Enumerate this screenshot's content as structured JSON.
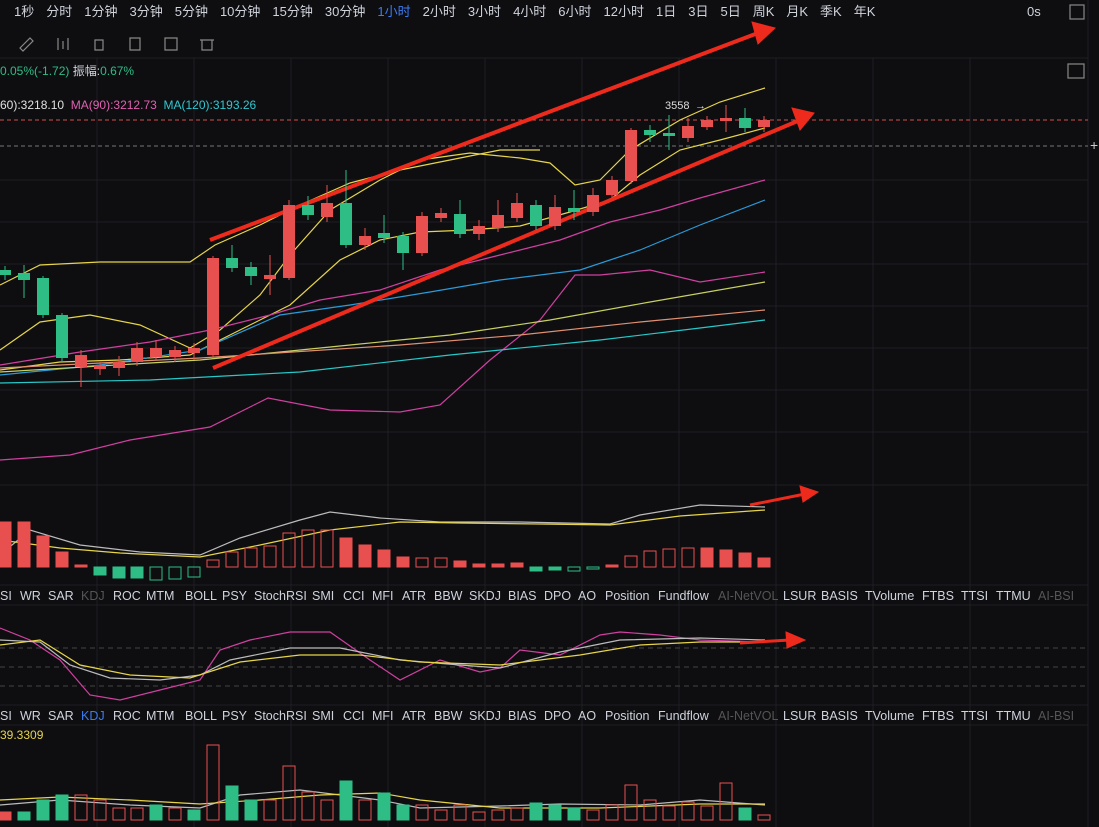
{
  "toolbar": {
    "intervals": [
      "1秒",
      "分时",
      "1分钟",
      "3分钟",
      "5分钟",
      "10分钟",
      "15分钟",
      "30分钟",
      "1小时",
      "2小时",
      "3小时",
      "4小时",
      "6小时",
      "12小时",
      "1日",
      "3日",
      "5日",
      "周K",
      "月K",
      "季K",
      "年K"
    ],
    "timer": "0s"
  },
  "stats": {
    "change": "0.05%(-1.72)",
    "amplitude_label": "振幅:",
    "amplitude": "0.67%"
  },
  "moving_averages": [
    "60):3218.10",
    "MA(90):3212.73",
    "MA(120):3193.26"
  ],
  "price_marker": "3558",
  "indicator_tabs_1": [
    "SI",
    "WR",
    "SAR",
    "KDJ",
    "ROC",
    "MTM",
    "BOLL",
    "PSY",
    "StochRSI",
    "SMI",
    "CCI",
    "MFI",
    "ATR",
    "BBW",
    "SKDJ",
    "BIAS",
    "DPO",
    "AO",
    "Position",
    "Fundflow",
    "AI-NetVOL",
    "LSUR",
    "BASIS",
    "TVolume",
    "FTBS",
    "TTSI",
    "TTMU",
    "AI-BSI"
  ],
  "indicator_tabs_2": [
    "SI",
    "WR",
    "SAR",
    "KDJ",
    "ROC",
    "MTM",
    "BOLL",
    "PSY",
    "StochRSI",
    "SMI",
    "CCI",
    "MFI",
    "ATR",
    "BBW",
    "SKDJ",
    "BIAS",
    "DPO",
    "AO",
    "Position",
    "Fundflow",
    "AI-NetVOL",
    "LSUR",
    "BASIS",
    "TVolume",
    "FTBS",
    "TTSI",
    "TTMU",
    "AI-BSI"
  ],
  "volume_label": "39.3309"
}
